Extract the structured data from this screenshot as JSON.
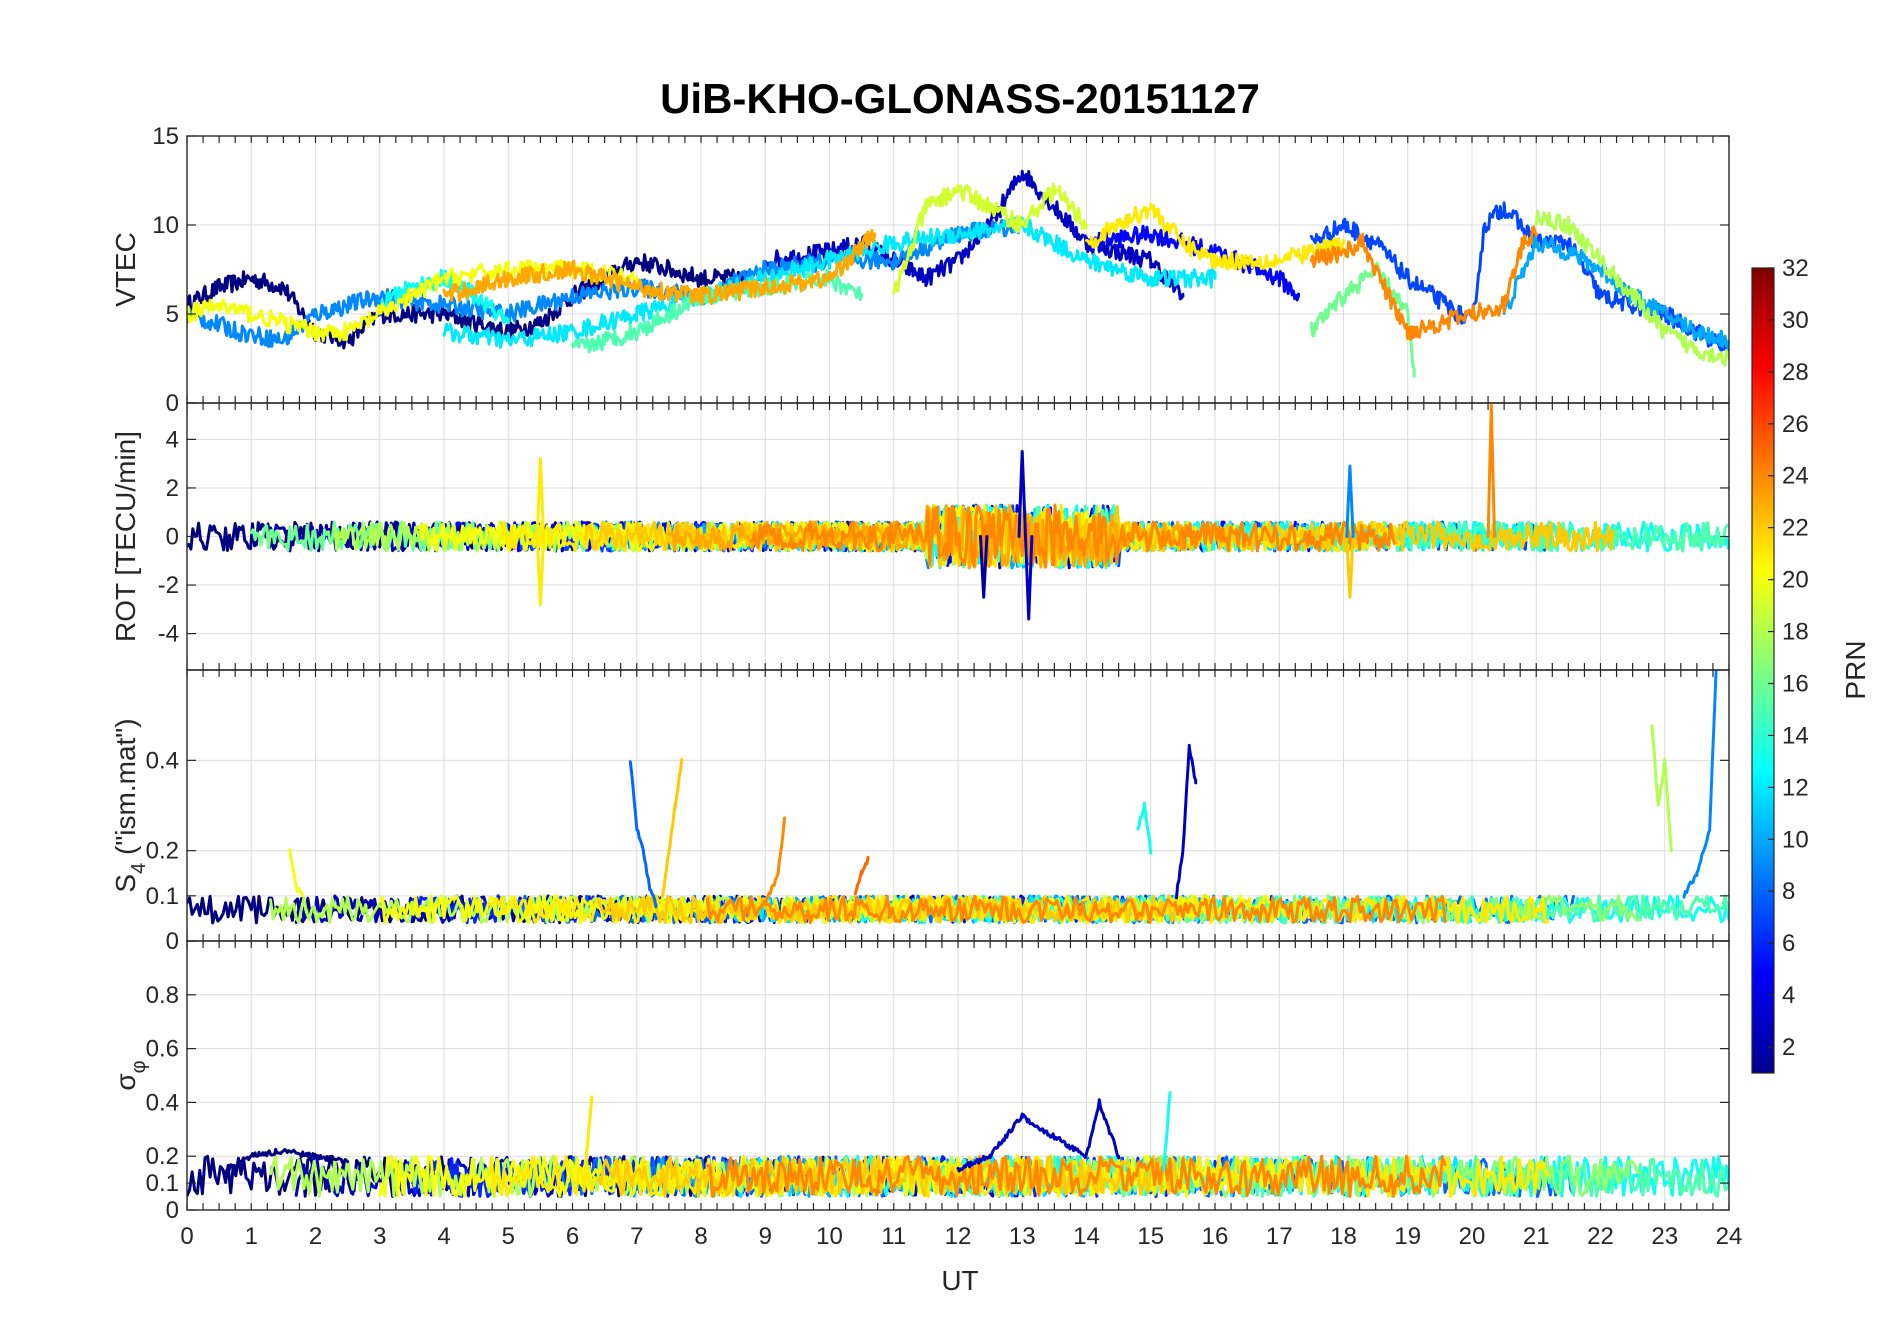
{
  "figure": {
    "title": "UiB-KHO-GLONASS-20151127",
    "xlabel": "UT",
    "colorbar": {
      "label": "PRN",
      "ticks": [
        "2",
        "4",
        "6",
        "8",
        "10",
        "12",
        "14",
        "16",
        "18",
        "20",
        "22",
        "24",
        "26",
        "28",
        "30",
        "32"
      ],
      "range": [
        1,
        32
      ],
      "colormap": "jet"
    }
  },
  "chart_data": [
    {
      "type": "line",
      "panel": "VTEC",
      "ylabel": "VTEC",
      "xlim": [
        0,
        24
      ],
      "ylim": [
        0,
        15
      ],
      "yticks": [
        0,
        5,
        10,
        15
      ],
      "xticks": [
        0,
        1,
        2,
        3,
        4,
        5,
        6,
        7,
        8,
        9,
        10,
        11,
        12,
        13,
        14,
        15,
        16,
        17,
        18,
        19,
        20,
        21,
        22,
        23,
        24
      ],
      "series": [
        {
          "prn": 1,
          "x": [
            0,
            0.5,
            1,
            1.5,
            2,
            2.5,
            3,
            4,
            5,
            5.5,
            6,
            7,
            8,
            8.7
          ],
          "y": [
            5.5,
            6.5,
            7,
            6.5,
            4,
            3.5,
            5,
            5,
            4,
            4.5,
            6,
            8,
            7,
            7
          ]
        },
        {
          "prn": 3,
          "x": [
            9,
            10,
            10.5,
            11,
            11.5,
            12,
            12.5,
            13,
            13.5,
            14,
            15,
            15.5
          ],
          "y": [
            8,
            8.5,
            9,
            8,
            7,
            8,
            10,
            13,
            11,
            9,
            8,
            6
          ]
        },
        {
          "prn": 5,
          "x": [
            14,
            15,
            16,
            17,
            17.3
          ],
          "y": [
            9,
            9.5,
            8.5,
            7,
            6
          ]
        },
        {
          "prn": 7,
          "x": [
            17.5,
            18,
            18.5,
            19,
            20,
            20.2,
            20.5,
            21,
            21.5,
            22,
            23,
            24
          ],
          "y": [
            9,
            10,
            9,
            7,
            4.5,
            10,
            11,
            9,
            9,
            6,
            5,
            3
          ]
        },
        {
          "prn": 9,
          "x": [
            0,
            0.8,
            1.5,
            2,
            3,
            4,
            5,
            6,
            7,
            8,
            9,
            10,
            11,
            12,
            13
          ],
          "y": [
            5,
            4,
            3.5,
            5,
            6,
            5.5,
            5,
            6,
            6.5,
            6,
            7.5,
            8,
            8,
            9.5,
            10
          ]
        },
        {
          "prn": 10,
          "x": [
            20.5,
            21,
            21.5,
            22,
            22.5,
            23,
            23.5,
            24
          ],
          "y": [
            5,
            9,
            8.5,
            7.5,
            6,
            5,
            4,
            3.5
          ]
        },
        {
          "prn": 12,
          "x": [
            4,
            5,
            6,
            7,
            8,
            9,
            10,
            11,
            12,
            13,
            14,
            15,
            16
          ],
          "y": [
            4,
            3.5,
            4,
            5,
            6,
            7,
            8,
            9,
            9.5,
            10,
            8,
            7,
            7
          ]
        },
        {
          "prn": 13,
          "x": [
            3,
            3.5,
            4,
            4.5,
            5
          ],
          "y": [
            5.5,
            6.5,
            7,
            6,
            4.5
          ]
        },
        {
          "prn": 15,
          "x": [
            6,
            6.5,
            7,
            7.5,
            8,
            9,
            10,
            10.5
          ],
          "y": [
            3,
            3.5,
            4,
            5,
            6,
            6.5,
            7,
            6
          ]
        },
        {
          "prn": 16,
          "x": [
            17.5,
            18,
            18.5,
            19,
            19.1
          ],
          "y": [
            4,
            6,
            7.5,
            5,
            1.5
          ]
        },
        {
          "prn": 18,
          "x": [
            21,
            21.5,
            22,
            22.5,
            23,
            23.5,
            24
          ],
          "y": [
            10.5,
            10,
            8,
            6,
            4,
            3,
            2.5
          ]
        },
        {
          "prn": 19,
          "x": [
            11,
            11.5,
            12,
            12.5,
            13,
            13.5,
            14
          ],
          "y": [
            6,
            11,
            12,
            11,
            10,
            12,
            10
          ]
        },
        {
          "prn": 20,
          "x": [
            0,
            0.5,
            1,
            1.5,
            2,
            2.5,
            3,
            3.5,
            4,
            5,
            6,
            7
          ],
          "y": [
            5,
            5.5,
            5,
            4.5,
            4,
            4,
            5,
            6,
            7,
            7.5,
            7.5,
            7
          ]
        },
        {
          "prn": 21,
          "x": [
            14,
            14.5,
            15,
            15.5,
            16,
            17,
            18
          ],
          "y": [
            9,
            10,
            11,
            9,
            8,
            8,
            9
          ]
        },
        {
          "prn": 23,
          "x": [
            4,
            5,
            6,
            7,
            8,
            9,
            10,
            10.7
          ],
          "y": [
            6,
            7,
            7.5,
            6.5,
            6,
            6.5,
            7,
            9.5
          ]
        },
        {
          "prn": 24,
          "x": [
            17.5,
            18,
            18.3,
            18.7,
            19,
            19.5,
            20,
            20.5,
            20.8,
            21
          ],
          "y": [
            8,
            8.5,
            9,
            6,
            4,
            4.5,
            5,
            5.5,
            9,
            9.5
          ]
        }
      ]
    },
    {
      "type": "line",
      "panel": "ROT",
      "ylabel": "ROT [TECU/min]",
      "xlim": [
        0,
        24
      ],
      "ylim": [
        -5.5,
        5.5
      ],
      "yticks": [
        -4,
        -2,
        0,
        2,
        4
      ],
      "series_note_spikes": [
        {
          "prn": 3,
          "x": 13.0,
          "y": 3.5
        },
        {
          "prn": 3,
          "x": 13.1,
          "y": -3.4
        },
        {
          "prn": 21,
          "x": 5.5,
          "y": 3.2
        },
        {
          "prn": 21,
          "x": 5.5,
          "y": -2.8
        },
        {
          "prn": 24,
          "x": 20.3,
          "y": 5.4
        },
        {
          "prn": 22,
          "x": 18.1,
          "y": -2.5
        },
        {
          "prn": 9,
          "x": 18.1,
          "y": 2.9
        },
        {
          "prn": 2,
          "x": 12.4,
          "y": -2.5
        }
      ]
    },
    {
      "type": "line",
      "panel": "S4",
      "ylabel": "S4 (\"ism.mat\")",
      "ylabel_main": "S",
      "ylabel_sub": "4",
      "ylabel_rest": " (\"ism.mat\")",
      "xlim": [
        0,
        24
      ],
      "ylim": [
        0,
        0.6
      ],
      "yticks": [
        0,
        0.1,
        0.2,
        0.4
      ],
      "ytick_labels": [
        "0",
        "0.1",
        "0.2",
        "0.4"
      ],
      "series": [
        {
          "prn": 8,
          "x": [
            6.9,
            7.0,
            7.1,
            7.2,
            7.3
          ],
          "y": [
            0.4,
            0.25,
            0.2,
            0.12,
            0.08
          ]
        },
        {
          "prn": 22,
          "x": [
            7.4,
            7.5,
            7.6,
            7.7
          ],
          "y": [
            0.1,
            0.2,
            0.3,
            0.4
          ]
        },
        {
          "prn": 24,
          "x": [
            9.0,
            9.2,
            9.3
          ],
          "y": [
            0.08,
            0.15,
            0.27
          ]
        },
        {
          "prn": 25,
          "x": [
            10.4,
            10.5,
            10.6
          ],
          "y": [
            0.1,
            0.15,
            0.18
          ]
        },
        {
          "prn": 13,
          "x": [
            14.8,
            14.9,
            15.0
          ],
          "y": [
            0.25,
            0.3,
            0.2
          ]
        },
        {
          "prn": 3,
          "x": [
            15.4,
            15.5,
            15.6,
            15.7
          ],
          "y": [
            0.1,
            0.2,
            0.43,
            0.35
          ]
        },
        {
          "prn": 18,
          "x": [
            22.8,
            22.9,
            23.0,
            23.1
          ],
          "y": [
            0.48,
            0.3,
            0.4,
            0.2
          ]
        },
        {
          "prn": 9,
          "x": [
            23.3,
            23.5,
            23.7,
            23.8
          ],
          "y": [
            0.1,
            0.15,
            0.25,
            0.6
          ]
        },
        {
          "prn": 20,
          "x": [
            1.6,
            1.7,
            1.8
          ],
          "y": [
            0.2,
            0.12,
            0.1
          ]
        }
      ],
      "baseline_range": [
        0.04,
        0.1
      ]
    },
    {
      "type": "line",
      "panel": "sigma_phi",
      "ylabel": "σφ",
      "ylabel_main": "σ",
      "ylabel_sub": "φ",
      "xlim": [
        0,
        24
      ],
      "ylim": [
        0,
        1
      ],
      "yticks": [
        0,
        0.1,
        0.2,
        0.4,
        0.6,
        0.8
      ],
      "ytick_labels": [
        "0",
        "0.1",
        "0.2",
        "0.4",
        "0.6",
        "0.8"
      ],
      "series": [
        {
          "prn": 1,
          "x": [
            0.6,
            1,
            1.5,
            2,
            2.5
          ],
          "y": [
            0.15,
            0.2,
            0.22,
            0.2,
            0.18
          ]
        },
        {
          "prn": 3,
          "x": [
            12,
            12.5,
            13,
            13.3,
            14,
            14.2,
            14.5
          ],
          "y": [
            0.15,
            0.2,
            0.35,
            0.3,
            0.2,
            0.4,
            0.2
          ]
        },
        {
          "prn": 21,
          "x": [
            6.2,
            6.3
          ],
          "y": [
            0.15,
            0.42
          ]
        },
        {
          "prn": 13,
          "x": [
            15.2,
            15.3
          ],
          "y": [
            0.15,
            0.43
          ]
        }
      ],
      "baseline_range": [
        0.05,
        0.2
      ]
    }
  ]
}
